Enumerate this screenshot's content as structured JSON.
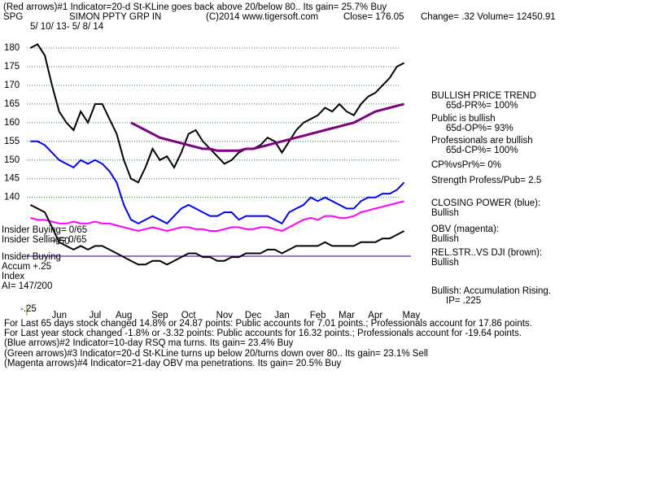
{
  "chart_data": {
    "type": "line",
    "header": [
      "(Red arrows)#1 Indicator=20-d St-KLine goes back above 20/below 80.. Its gain= 25.7% Buy",
      "SPG",
      "SIMON PPTY GRP IN",
      "(C)2014 www.tigersoft.com",
      "Close=  176.05",
      "Change= .32  Volume= 12450.91",
      "5/ 10/ 13-  5/ 8/ 14"
    ],
    "categories": [
      null,
      null,
      null,
      null,
      "Jun",
      null,
      null,
      null,
      null,
      "Jul",
      null,
      null,
      null,
      "Aug",
      null,
      null,
      null,
      null,
      "Sep",
      null,
      null,
      null,
      "Oct",
      null,
      null,
      null,
      null,
      "Nov",
      null,
      null,
      null,
      "Dec",
      null,
      null,
      null,
      "Jan",
      null,
      null,
      null,
      null,
      "Feb",
      null,
      null,
      null,
      "Mar",
      null,
      null,
      null,
      "Apr",
      null,
      null,
      null,
      null,
      "May"
    ],
    "ylim": [
      109,
      188.5
    ],
    "yticks": [
      140,
      145,
      150,
      155,
      160,
      165,
      170,
      175,
      180
    ],
    "grid": true,
    "series": [
      {
        "name": "Price",
        "color": "#000000",
        "values": [
          180,
          181,
          178,
          170,
          163,
          160,
          158,
          163,
          160,
          165,
          165,
          161,
          157,
          150,
          145,
          144,
          148,
          153,
          150,
          151,
          148,
          152,
          157,
          158,
          155,
          153,
          151,
          149,
          150,
          152,
          153,
          153,
          154,
          156,
          155,
          152,
          155,
          158,
          160,
          161,
          162,
          164,
          163,
          165,
          163,
          162,
          165,
          167,
          168,
          170,
          172,
          175,
          176,
          null
        ]
      },
      {
        "name": "MA",
        "color": "#800080",
        "values": [
          null,
          null,
          null,
          null,
          null,
          null,
          null,
          null,
          null,
          null,
          null,
          null,
          null,
          null,
          160,
          159,
          158,
          157,
          156,
          155.5,
          155,
          154.5,
          154,
          153.5,
          153,
          153,
          152.5,
          152.5,
          152.5,
          152.5,
          153,
          153,
          153.5,
          154,
          154.5,
          155,
          155.5,
          156,
          156.5,
          157,
          157.5,
          158,
          158.5,
          159,
          159.5,
          160,
          161,
          162,
          163,
          163.5,
          164,
          164.5,
          165,
          null
        ]
      },
      {
        "name": "CLOSING POWER (blue):",
        "color": "#0000ff",
        "values": [
          155,
          155,
          154,
          152,
          150,
          149,
          148,
          150,
          149,
          150,
          149,
          147,
          144,
          138,
          134,
          133,
          134,
          135,
          134,
          133,
          135,
          137,
          138,
          137,
          136,
          135,
          135,
          136,
          136,
          134,
          135,
          135,
          135,
          135,
          134,
          133,
          136,
          137,
          138,
          140,
          139,
          140,
          139,
          138,
          137,
          137,
          139,
          140,
          140,
          141,
          141,
          142,
          144,
          null
        ]
      },
      {
        "name": "OBV (magenta):",
        "color": "#ff00ff",
        "values": [
          134.5,
          134,
          134,
          133.5,
          133,
          133,
          133.5,
          133,
          133,
          133.5,
          133,
          133,
          132.5,
          132,
          131.5,
          131,
          131.5,
          132,
          131.5,
          131,
          131.5,
          132,
          132,
          131.5,
          131.5,
          131,
          131,
          131.5,
          132,
          132,
          131.5,
          131.5,
          132,
          132,
          131.5,
          131,
          132,
          133,
          134,
          134.5,
          134,
          135,
          135,
          134.5,
          134.5,
          135,
          136,
          136.5,
          137,
          137.5,
          138,
          138.5,
          139,
          null
        ]
      },
      {
        "name": "REL.STR..VS DJI (brown):",
        "color": "#000000",
        "values": [
          138,
          137,
          136,
          132,
          128,
          127,
          126,
          127,
          126,
          127,
          127,
          126,
          125,
          124,
          123,
          122,
          122,
          123,
          123,
          122,
          123,
          124,
          125,
          125,
          124,
          124,
          123,
          123,
          124,
          124,
          125,
          125,
          125,
          126,
          126,
          125,
          126,
          127,
          127,
          127,
          127,
          128,
          127,
          127,
          127,
          127,
          128,
          128,
          128,
          129,
          129,
          130,
          131,
          null
        ]
      }
    ],
    "right_panel": [
      "BULLISH PRICE TREND",
      "65d-PR%= 100%",
      "Public is bullish",
      "65d-OP%= 93%",
      "Professionals are bullish",
      "65d-CP%= 100%",
      "CP%vsPr%=  0%",
      "Strength Profess/Pub= 2.5",
      "CLOSING POWER (blue):",
      "Bullish",
      "OBV (magenta):",
      "Bullish",
      "REL.STR..VS DJI (brown):",
      "Bullish",
      "Bullish: Accumulation Rising.",
      "IP=  .225"
    ],
    "left_panel": [
      "Insider Buying= 0/65",
      "Insider Selling= 0/65",
      "+.50",
      "Insider Buying",
      "Accum  +.25",
      "Index",
      "AI= 147/200",
      "-.25"
    ],
    "footer": [
      "For Last 65 days stock changed  14.8% or  24.87 points:  Public accounts for  7.01 points.;  Professionals account for  17.86 points.",
      "For Last year stock changed -1.8% or -3.32 points:  Public accounts for  16.32 points.;  Professionals account for -19.64 points.",
      "(Blue arrows)#2 Indicator=10-day RSQ ma turns.  Its gain= 23.4% Buy",
      "(Green arrows)#3 Indicator=20-d St-KLine turns up below 20/turns down over 80.. Its gain= 23.1% Sell",
      "(Magenta arrows)#4 Indicator=21-day OBV ma penetrations. Its gain= 20.5% Buy"
    ]
  }
}
